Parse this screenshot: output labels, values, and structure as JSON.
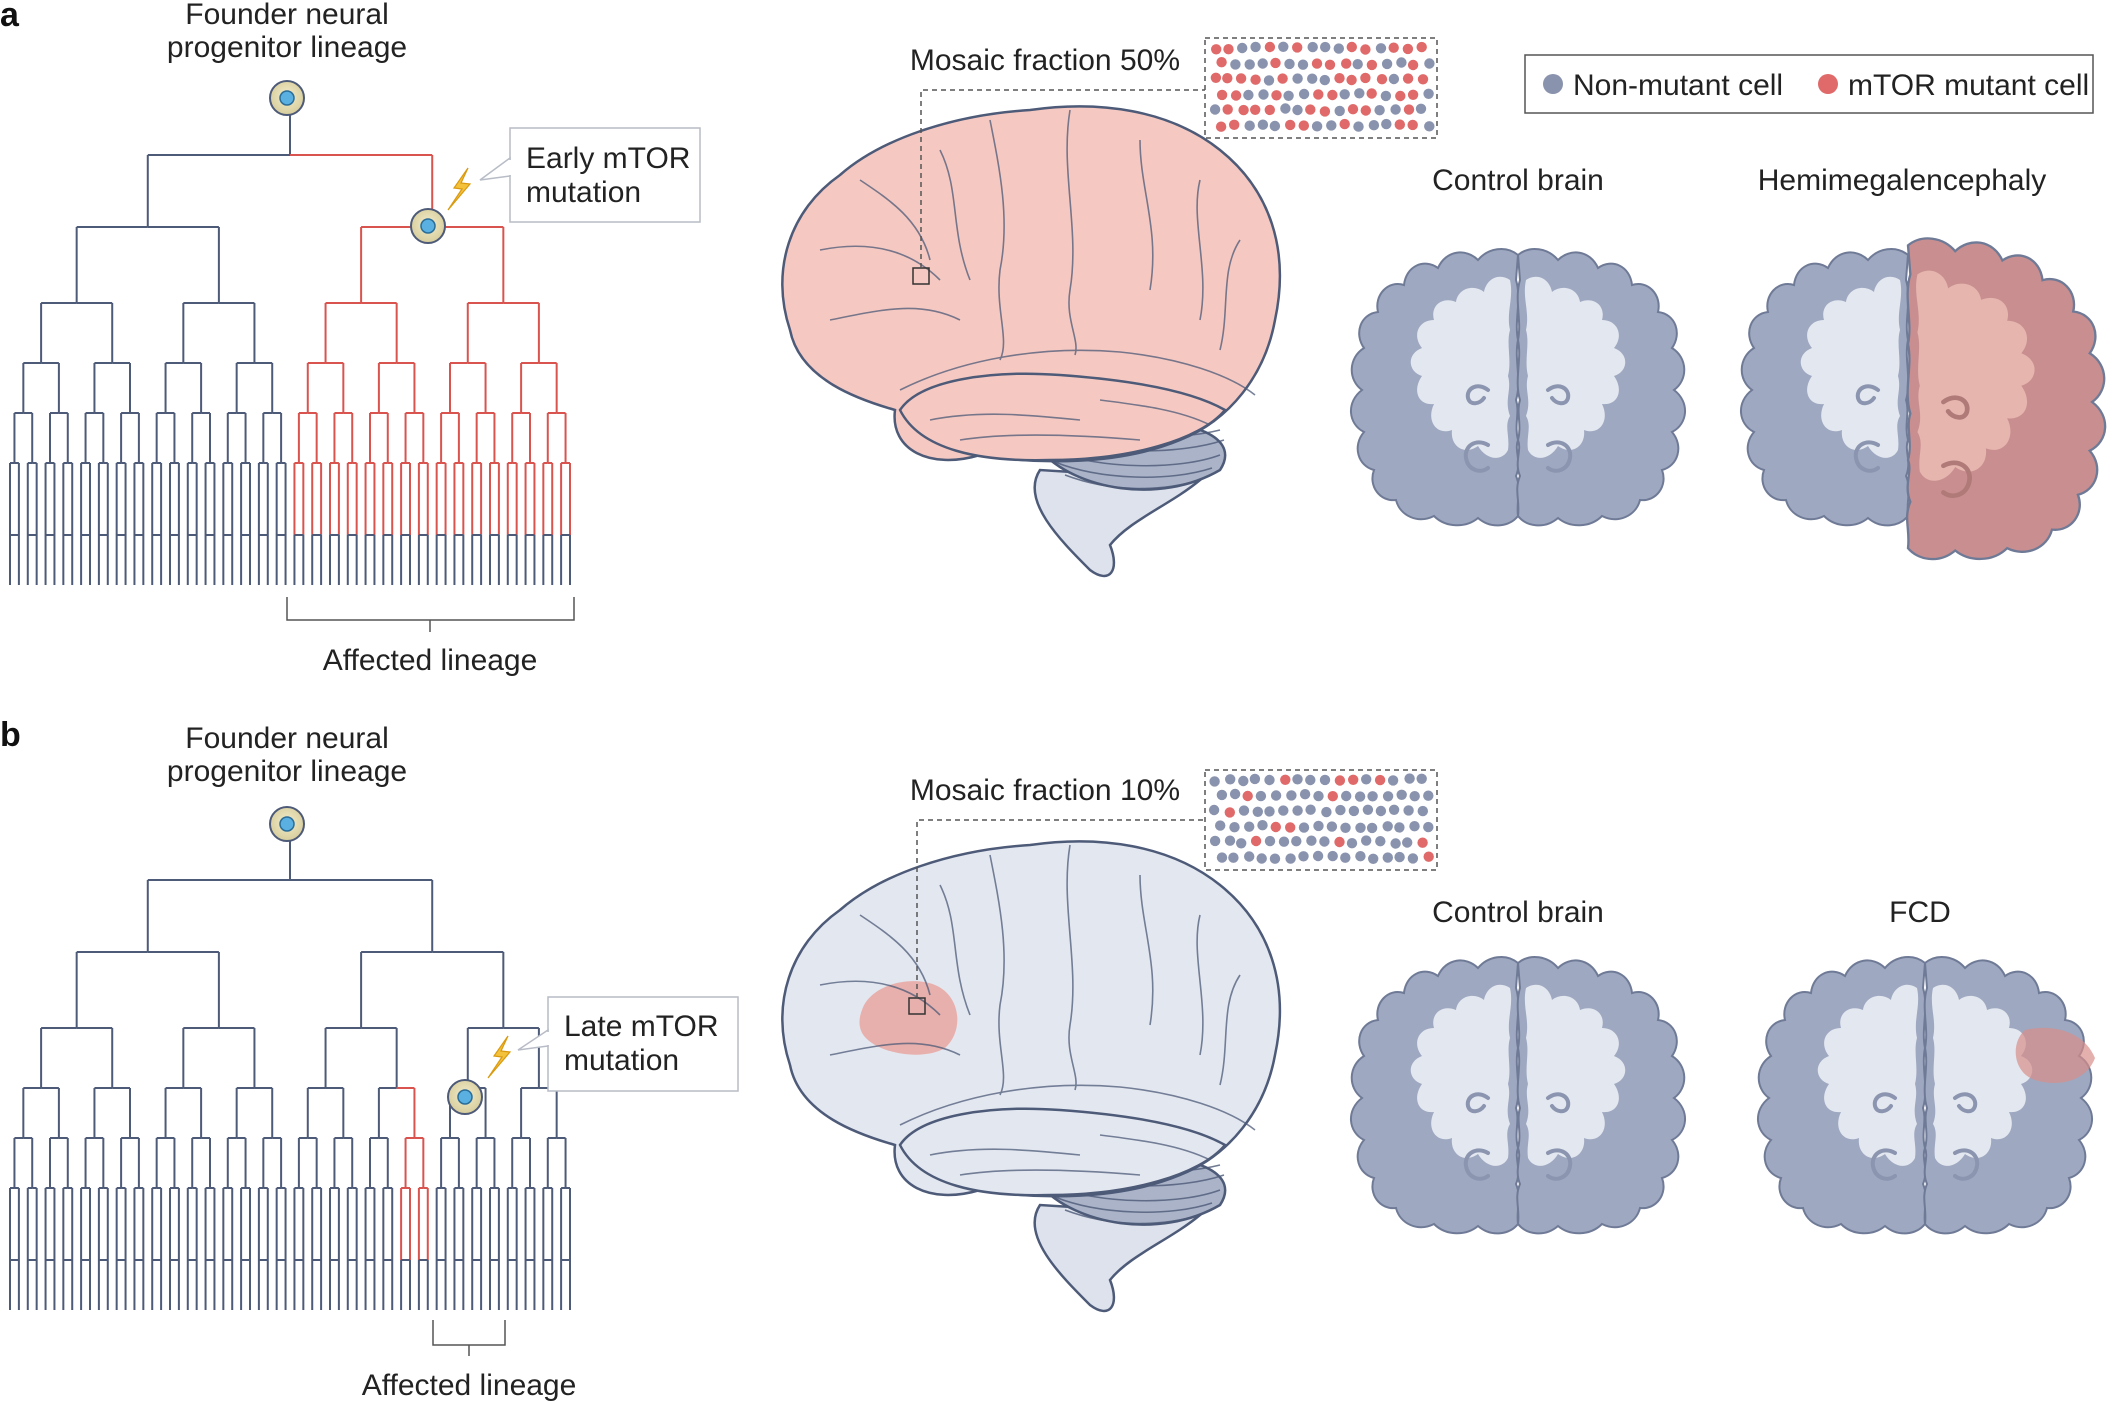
{
  "panel_a": {
    "letter": "a",
    "founder_label": [
      "Founder neural",
      "progenitor lineage"
    ],
    "mutation_label": [
      "Early mTOR",
      "mutation"
    ],
    "affected_label": "Affected lineage",
    "mosaic_label": "Mosaic fraction 50%",
    "mosaic_fraction": 0.5,
    "control_label": "Control brain",
    "disease_label": "Hemimegalencephaly"
  },
  "panel_b": {
    "letter": "b",
    "founder_label": [
      "Founder neural",
      "progenitor lineage"
    ],
    "mutation_label": [
      "Late mTOR",
      "mutation"
    ],
    "affected_label": "Affected lineage",
    "mosaic_label": "Mosaic fraction 10%",
    "mosaic_fraction": 0.1,
    "control_label": "Control brain",
    "disease_label": "FCD"
  },
  "legend": {
    "items": [
      {
        "label": "Non-mutant cell",
        "color": "#8a93ad"
      },
      {
        "label": "mTOR mutant cell",
        "color": "#e06a6a"
      }
    ]
  },
  "colors": {
    "tree_normal": "#4d5a78",
    "tree_mutant": "#d9534f",
    "brain_healthy": "#e3e7f0",
    "brain_affected": "#f5c9c2",
    "cortex": "#9ea8c0",
    "lesion": "#d98f8a"
  }
}
